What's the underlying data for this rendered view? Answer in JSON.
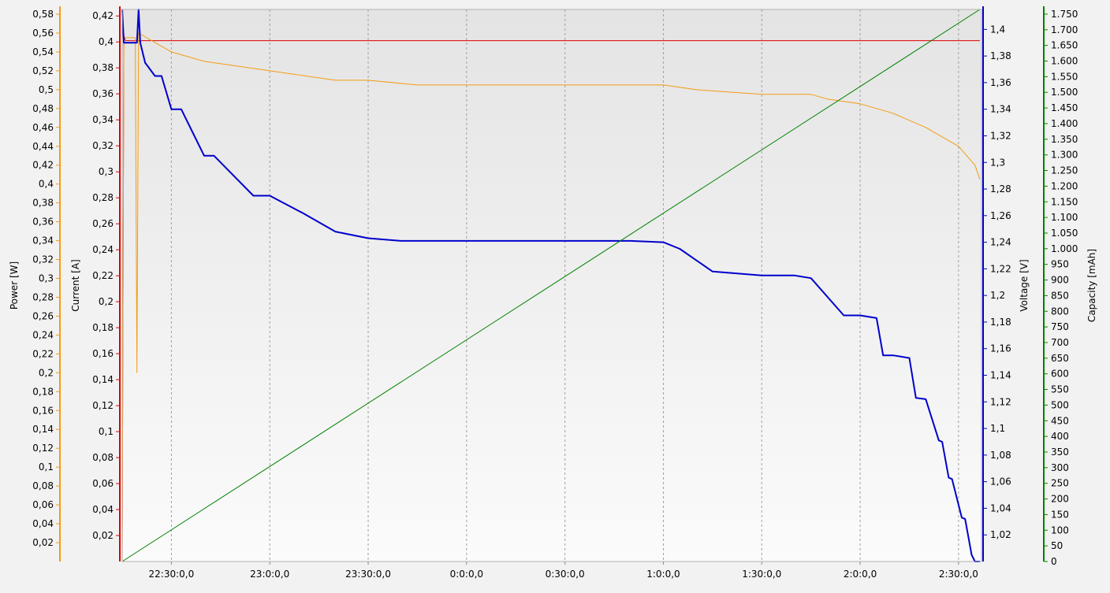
{
  "chart_data": {
    "type": "line",
    "x_axis": {
      "range": [
        "22:15:00",
        "2:37:00"
      ],
      "ticks": [
        "22:30:0,0",
        "23:0:0,0",
        "23:30:0,0",
        "0:0:0,0",
        "0:30:0,0",
        "1:0:0,0",
        "1:30:0,0",
        "2:0:0,0",
        "2:30:0,0"
      ],
      "grid": true
    },
    "axes": {
      "power": {
        "label": "Power [W]",
        "color": "#f39c12",
        "range": [
          0,
          0.585
        ],
        "ticks": [
          "0,02",
          "0,04",
          "0,06",
          "0,08",
          "0,1",
          "0,12",
          "0,14",
          "0,16",
          "0,18",
          "0,2",
          "0,22",
          "0,24",
          "0,26",
          "0,28",
          "0,3",
          "0,32",
          "0,34",
          "0,36",
          "0,38",
          "0,4",
          "0,42",
          "0,44",
          "0,46",
          "0,48",
          "0,5",
          "0,52",
          "0,54",
          "0,56",
          "0,58"
        ]
      },
      "current": {
        "label": "Current [A]",
        "color": "#e00000",
        "range": [
          0,
          0.425
        ],
        "ticks": [
          "0,02",
          "0,04",
          "0,06",
          "0,08",
          "0,1",
          "0,12",
          "0,14",
          "0,16",
          "0,18",
          "0,2",
          "0,22",
          "0,24",
          "0,26",
          "0,28",
          "0,3",
          "0,32",
          "0,34",
          "0,36",
          "0,38",
          "0,4",
          "0,42"
        ]
      },
      "voltage": {
        "label": "Voltage [V]",
        "color": "#0000cc",
        "range": [
          1.0,
          1.415
        ],
        "ticks": [
          "1,02",
          "1,04",
          "1,06",
          "1,08",
          "1,1",
          "1,12",
          "1,14",
          "1,16",
          "1,18",
          "1,2",
          "1,22",
          "1,24",
          "1,26",
          "1,28",
          "1,3",
          "1,32",
          "1,34",
          "1,36",
          "1,38",
          "1,4"
        ]
      },
      "capacity": {
        "label": "Capacity [mAh]",
        "color": "#008000",
        "range": [
          0,
          1765
        ],
        "ticks": [
          "0",
          "50",
          "100",
          "150",
          "200",
          "250",
          "300",
          "350",
          "400",
          "450",
          "500",
          "550",
          "600",
          "650",
          "700",
          "750",
          "800",
          "850",
          "900",
          "950",
          "1.000",
          "1.050",
          "1.100",
          "1.150",
          "1.200",
          "1.250",
          "1.300",
          "1.350",
          "1.400",
          "1.450",
          "1.500",
          "1.550",
          "1.600",
          "1.650",
          "1.700",
          "1.750"
        ]
      }
    },
    "series": [
      {
        "axis": "current",
        "color": "#e00000",
        "x": [
          "22:15:00",
          "22:15:30",
          "22:16:00",
          "2:35:00",
          "2:36:30"
        ],
        "y": [
          0.0,
          0.405,
          0.401,
          0.401,
          0.401
        ]
      },
      {
        "axis": "power",
        "color": "#f39c12",
        "x": [
          "22:15:00",
          "22:15:30",
          "22:19:00",
          "22:19:30",
          "22:20:00",
          "22:25:00",
          "22:30:00",
          "22:40:00",
          "22:50:00",
          "23:00:00",
          "23:10:00",
          "23:20:00",
          "23:30:00",
          "23:45:00",
          "0:00:00",
          "0:30:00",
          "1:00:00",
          "1:10:00",
          "1:30:00",
          "1:45:00",
          "1:50:00",
          "2:00:00",
          "2:10:00",
          "2:20:00",
          "2:30:00",
          "2:35:00",
          "2:36:30"
        ],
        "y": [
          0.0,
          0.555,
          0.555,
          0.2,
          0.56,
          0.55,
          0.54,
          0.53,
          0.525,
          0.52,
          0.515,
          0.51,
          0.51,
          0.505,
          0.505,
          0.505,
          0.505,
          0.5,
          0.495,
          0.495,
          0.49,
          0.485,
          0.475,
          0.46,
          0.44,
          0.42,
          0.405
        ]
      },
      {
        "axis": "voltage",
        "color": "#0000cc",
        "x": [
          "22:15:00",
          "22:15:30",
          "22:19:30",
          "22:20:00",
          "22:20:30",
          "22:21:00",
          "22:22:00",
          "22:25:00",
          "22:27:00",
          "22:30:00",
          "22:33:00",
          "22:40:00",
          "22:43:00",
          "22:55:00",
          "23:00:00",
          "23:10:00",
          "23:20:00",
          "23:30:00",
          "23:40:00",
          "0:00:00",
          "0:30:00",
          "0:50:00",
          "1:00:00",
          "1:05:00",
          "1:15:00",
          "1:30:00",
          "1:40:00",
          "1:45:00",
          "1:55:00",
          "2:00:00",
          "2:05:00",
          "2:07:00",
          "2:10:00",
          "2:15:00",
          "2:17:00",
          "2:20:00",
          "2:24:00",
          "2:25:00",
          "2:27:00",
          "2:28:00",
          "2:31:00",
          "2:32:00",
          "2:34:00",
          "2:35:00",
          "2:36:00",
          "2:36:30"
        ],
        "y": [
          1.415,
          1.39,
          1.39,
          1.415,
          1.39,
          1.385,
          1.375,
          1.365,
          1.365,
          1.34,
          1.34,
          1.305,
          1.305,
          1.275,
          1.275,
          1.262,
          1.248,
          1.243,
          1.241,
          1.241,
          1.241,
          1.241,
          1.24,
          1.235,
          1.218,
          1.215,
          1.215,
          1.213,
          1.185,
          1.185,
          1.183,
          1.155,
          1.155,
          1.153,
          1.123,
          1.122,
          1.091,
          1.09,
          1.063,
          1.062,
          1.033,
          1.032,
          1.005,
          1.0,
          1.0,
          1.0
        ]
      },
      {
        "axis": "capacity",
        "color": "#008000",
        "x": [
          "22:15:00",
          "2:36:30"
        ],
        "y": [
          0,
          1765
        ]
      }
    ]
  }
}
